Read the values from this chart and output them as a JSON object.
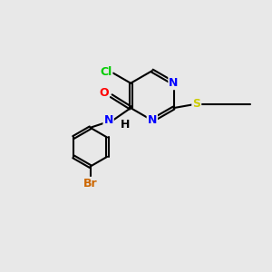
{
  "background_color": "#e8e8e8",
  "bond_color": "#000000",
  "atom_colors": {
    "N": "#0000ff",
    "O": "#ff0000",
    "S": "#cccc00",
    "Cl": "#00cc00",
    "Br": "#cc6600",
    "H": "#000000",
    "C": "#000000"
  },
  "font_size": 9,
  "figsize": [
    3.0,
    3.0
  ],
  "dpi": 100
}
